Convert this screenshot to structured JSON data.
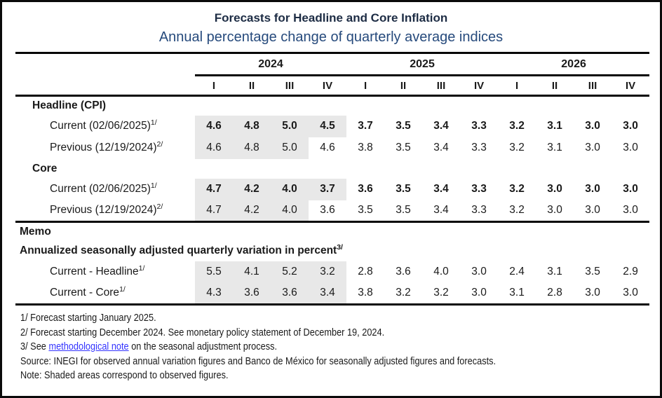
{
  "title": "Forecasts for Headline and Core Inflation",
  "subtitle": "Annual percentage change of quarterly average indices",
  "colors": {
    "title": "#1d2c44",
    "subtitle": "#264a7c",
    "link": "#3333ff",
    "shaded_cell": "#e8e8e8",
    "rule": "#050505"
  },
  "table": {
    "year_groups": [
      {
        "label": "2024"
      },
      {
        "label": "2025"
      },
      {
        "label": "2026"
      }
    ],
    "quarter_labels": [
      "I",
      "II",
      "III",
      "IV",
      "I",
      "II",
      "III",
      "IV",
      "I",
      "II",
      "III",
      "IV"
    ],
    "sections": [
      {
        "header": "Headline (CPI)",
        "rows": [
          {
            "label": "Current (02/06/2025)",
            "sup": "1/",
            "bold": true,
            "shaded_count": 4,
            "values": [
              "4.6",
              "4.8",
              "5.0",
              "4.5",
              "3.7",
              "3.5",
              "3.4",
              "3.3",
              "3.2",
              "3.1",
              "3.0",
              "3.0"
            ]
          },
          {
            "label": "Previous (12/19/2024)",
            "sup": "2/",
            "bold": false,
            "shaded_count": 3,
            "values": [
              "4.6",
              "4.8",
              "5.0",
              "4.6",
              "3.8",
              "3.5",
              "3.4",
              "3.3",
              "3.2",
              "3.1",
              "3.0",
              "3.0"
            ]
          }
        ]
      },
      {
        "header": "Core",
        "rows": [
          {
            "label": "Current (02/06/2025)",
            "sup": "1/",
            "bold": true,
            "shaded_count": 4,
            "values": [
              "4.7",
              "4.2",
              "4.0",
              "3.7",
              "3.6",
              "3.5",
              "3.4",
              "3.3",
              "3.2",
              "3.0",
              "3.0",
              "3.0"
            ]
          },
          {
            "label": "Previous (12/19/2024)",
            "sup": "2/",
            "bold": false,
            "shaded_count": 3,
            "values": [
              "4.7",
              "4.2",
              "4.0",
              "3.6",
              "3.5",
              "3.5",
              "3.4",
              "3.3",
              "3.2",
              "3.0",
              "3.0",
              "3.0"
            ]
          }
        ]
      }
    ],
    "memo": {
      "header": "Memo",
      "subheader": "Annualized seasonally adjusted quarterly variation in percent",
      "subheader_sup": "3/",
      "rows": [
        {
          "label": "Current - Headline",
          "sup": "1/",
          "bold": false,
          "shaded_count": 4,
          "values": [
            "5.5",
            "4.1",
            "5.2",
            "3.2",
            "2.8",
            "3.6",
            "4.0",
            "3.0",
            "2.4",
            "3.1",
            "3.5",
            "2.9"
          ]
        },
        {
          "label": "Current - Core",
          "sup": "1/",
          "bold": false,
          "shaded_count": 4,
          "values": [
            "4.3",
            "3.6",
            "3.6",
            "3.4",
            "3.8",
            "3.2",
            "3.2",
            "3.0",
            "3.1",
            "2.8",
            "3.0",
            "3.0"
          ]
        }
      ]
    }
  },
  "footnotes": {
    "fn1": "1/ Forecast starting January 2025.",
    "fn2": "2/ Forecast starting December 2024. See monetary policy statement of December 19, 2024.",
    "fn3_prefix": "3/ See ",
    "fn3_link": "methodological note",
    "fn3_suffix": " on the seasonal adjustment process.",
    "source": "Source: INEGI for observed annual variation figures and Banco de México for seasonally adjusted figures and forecasts.",
    "note": "Note: Shaded areas correspond to observed figures."
  }
}
